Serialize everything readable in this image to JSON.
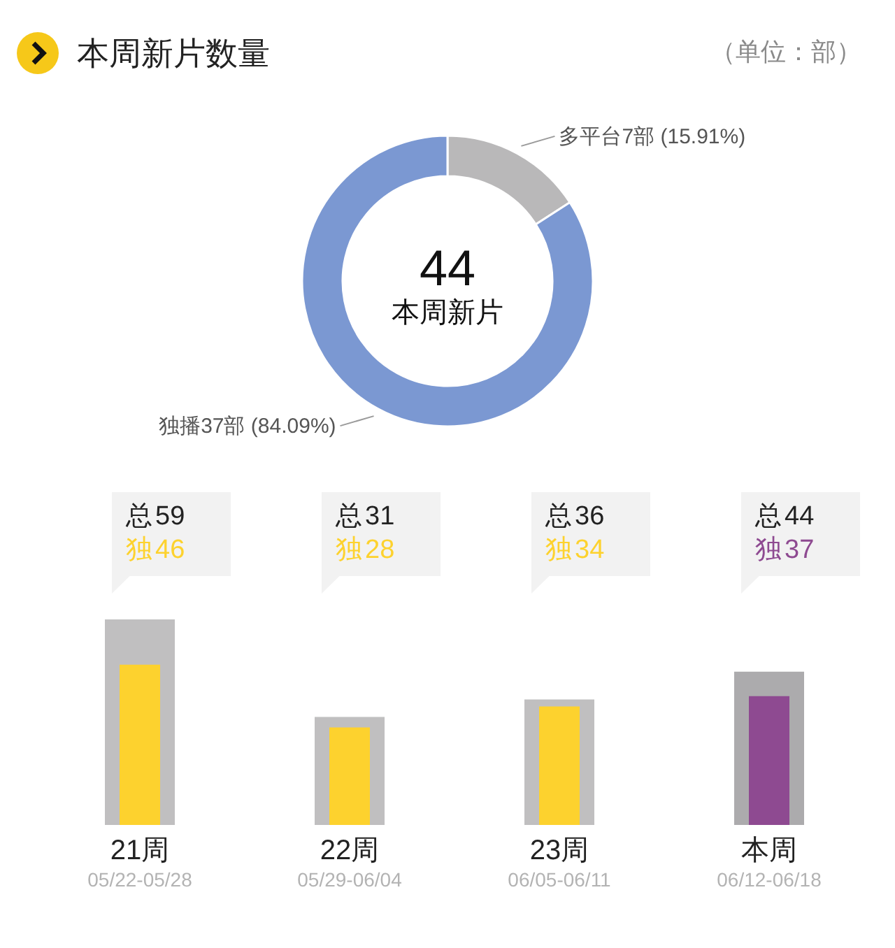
{
  "chart_data": [
    {
      "type": "donut",
      "title": "本周新片数量",
      "subtitle": "（单位：部）",
      "categories": [
        "多平台",
        "独播"
      ],
      "values": [
        7,
        37
      ],
      "colors": [
        "#b9b8b9",
        "#7b98d2"
      ],
      "value_labels": [
        "7部 (15.91%)",
        "37部 (84.09%)"
      ],
      "annotations": [
        "44",
        "本周新片"
      ]
    },
    {
      "type": "bar",
      "categories": [
        "21周",
        "22周",
        "23周",
        "本周"
      ],
      "series": [
        {
          "name": "总",
          "colors": [
            "#c0bfc0",
            "#c0bfc0",
            "#c0bfc0",
            "#acabad"
          ],
          "values": [
            59,
            31,
            36,
            44
          ]
        },
        {
          "name": "独",
          "colors": [
            "#fdd22e",
            "#fdd22e",
            "#fdd22e",
            "#8e4a91"
          ],
          "values": [
            46,
            28,
            34,
            37
          ]
        }
      ],
      "data_labels": true,
      "annotations": [
        "05/22-05/28",
        "05/29-06/04",
        "06/05-06/11",
        "06/12-06/18"
      ]
    }
  ]
}
